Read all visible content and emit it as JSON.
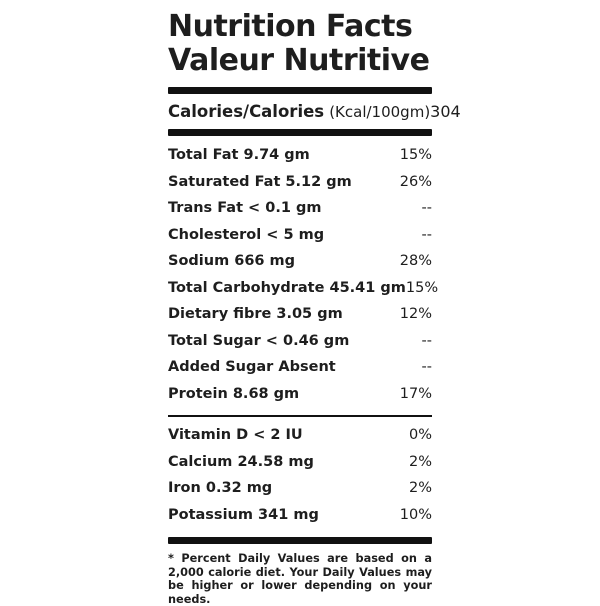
{
  "label": {
    "title_line1": "Nutrition Facts",
    "title_line2": "Valeur Nutritive",
    "calories": {
      "label": "Calories/Calories",
      "unit": "(Kcal/100gm)",
      "value": "304"
    },
    "nutrients": [
      {
        "name": "Total Fat 9.74 gm",
        "dv": "15%"
      },
      {
        "name": "Saturated Fat 5.12 gm",
        "dv": "26%"
      },
      {
        "name": "Trans Fat < 0.1 gm",
        "dv": "--"
      },
      {
        "name": "Cholesterol < 5 mg",
        "dv": "--"
      },
      {
        "name": "Sodium 666 mg",
        "dv": "28%"
      },
      {
        "name": "Total Carbohydrate 45.41 gm",
        "dv": "15%"
      },
      {
        "name": "Dietary fibre 3.05 gm",
        "dv": "12%"
      },
      {
        "name": "Total Sugar < 0.46 gm",
        "dv": "--"
      },
      {
        "name": "Added Sugar Absent",
        "dv": "--"
      },
      {
        "name": "Protein 8.68 gm",
        "dv": "17%"
      }
    ],
    "vitamins": [
      {
        "name": "Vitamin D < 2 IU",
        "dv": "0%"
      },
      {
        "name": "Calcium 24.58 mg",
        "dv": "2%"
      },
      {
        "name": "Iron 0.32 mg",
        "dv": "2%"
      },
      {
        "name": "Potassium 341 mg",
        "dv": "10%"
      }
    ],
    "footnote": "* Percent Daily Values are based on a 2,000 calorie diet. Your Daily Values may be higher or lower depending on your needs.",
    "colors": {
      "text": "#1e1e1e",
      "bar": "#111111",
      "background": "#ffffff"
    }
  }
}
